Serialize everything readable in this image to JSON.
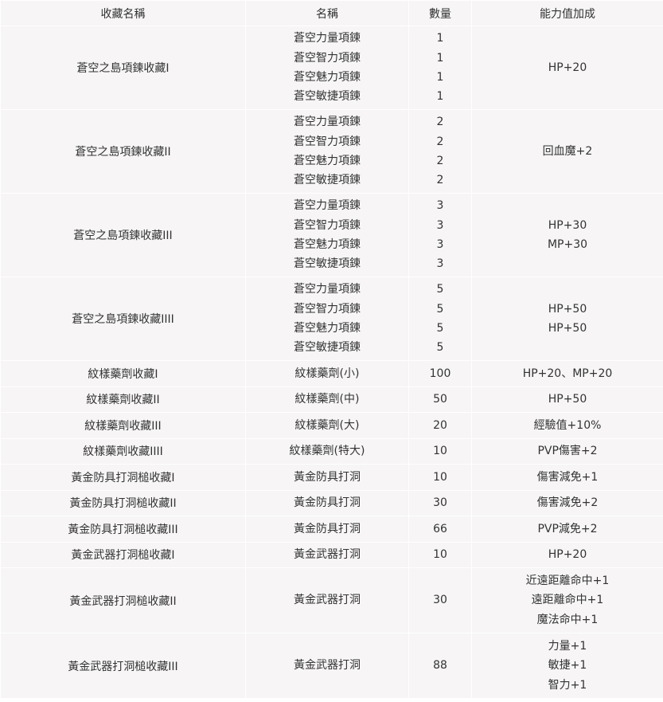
{
  "headers": [
    "收藏名稱",
    "名稱",
    "數量",
    "能力值加成"
  ],
  "rows": [
    {
      "collection": "蒼空之島項鍊收藏I",
      "items": [
        "蒼空力量項鍊",
        "蒼空智力項鍊",
        "蒼空魅力項鍊",
        "蒼空敏捷項鍊"
      ],
      "counts": [
        "1",
        "1",
        "1",
        "1"
      ],
      "bonus": [
        "HP+20"
      ]
    },
    {
      "collection": "蒼空之島項鍊收藏II",
      "items": [
        "蒼空力量項鍊",
        "蒼空智力項鍊",
        "蒼空魅力項鍊",
        "蒼空敏捷項鍊"
      ],
      "counts": [
        "2",
        "2",
        "2",
        "2"
      ],
      "bonus": [
        "回血魔+2"
      ]
    },
    {
      "collection": "蒼空之島項鍊收藏III",
      "items": [
        "蒼空力量項鍊",
        "蒼空智力項鍊",
        "蒼空魅力項鍊",
        "蒼空敏捷項鍊"
      ],
      "counts": [
        "3",
        "3",
        "3",
        "3"
      ],
      "bonus": [
        "HP+30",
        "MP+30"
      ]
    },
    {
      "collection": "蒼空之島項鍊收藏IIII",
      "items": [
        "蒼空力量項鍊",
        "蒼空智力項鍊",
        "蒼空魅力項鍊",
        "蒼空敏捷項鍊"
      ],
      "counts": [
        "5",
        "5",
        "5",
        "5"
      ],
      "bonus": [
        "HP+50",
        "HP+50"
      ]
    },
    {
      "collection": "紋樣藥劑收藏I",
      "items": [
        "紋樣藥劑(小)"
      ],
      "counts": [
        "100"
      ],
      "bonus": [
        "HP+20、MP+20"
      ]
    },
    {
      "collection": "紋樣藥劑收藏II",
      "items": [
        "紋樣藥劑(中)"
      ],
      "counts": [
        "50"
      ],
      "bonus": [
        "HP+50"
      ]
    },
    {
      "collection": "紋樣藥劑收藏III",
      "items": [
        "紋樣藥劑(大)"
      ],
      "counts": [
        "20"
      ],
      "bonus": [
        "經驗值+10%"
      ]
    },
    {
      "collection": "紋樣藥劑收藏IIII",
      "items": [
        "紋樣藥劑(特大)"
      ],
      "counts": [
        "10"
      ],
      "bonus": [
        "PVP傷害+2"
      ]
    },
    {
      "collection": "黃金防具打洞槌收藏I",
      "items": [
        "黃金防具打洞"
      ],
      "counts": [
        "10"
      ],
      "bonus": [
        "傷害減免+1"
      ]
    },
    {
      "collection": "黃金防具打洞槌收藏II",
      "items": [
        "黃金防具打洞"
      ],
      "counts": [
        "30"
      ],
      "bonus": [
        "傷害減免+2"
      ]
    },
    {
      "collection": "黃金防具打洞槌收藏III",
      "items": [
        "黃金防具打洞"
      ],
      "counts": [
        "66"
      ],
      "bonus": [
        "PVP減免+2"
      ]
    },
    {
      "collection": "黃金武器打洞槌收藏I",
      "items": [
        "黃金武器打洞"
      ],
      "counts": [
        "10"
      ],
      "bonus": [
        "HP+20"
      ]
    },
    {
      "collection": "黃金武器打洞槌收藏II",
      "items": [
        "黃金武器打洞"
      ],
      "counts": [
        "30"
      ],
      "bonus": [
        "近遠距離命中+1",
        "遠距離命中+1",
        "魔法命中+1"
      ]
    },
    {
      "collection": "黃金武器打洞槌收藏III",
      "items": [
        "黃金武器打洞"
      ],
      "counts": [
        "88"
      ],
      "bonus": [
        "力量+1",
        "敏捷+1",
        "智力+1"
      ]
    }
  ]
}
